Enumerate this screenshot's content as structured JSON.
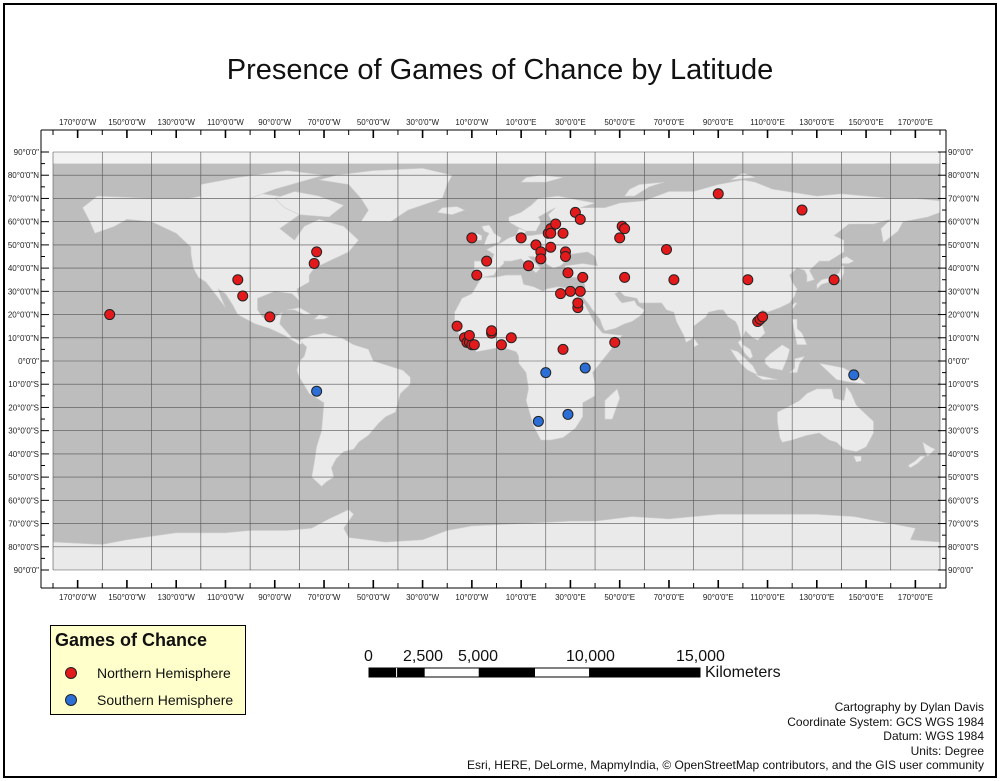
{
  "title": "Presence of Games of Chance by Latitude",
  "map": {
    "lon_labels": [
      "170°0'0\"W",
      "150°0'0\"W",
      "130°0'0\"W",
      "110°0'0\"W",
      "90°0'0\"W",
      "70°0'0\"W",
      "50°0'0\"W",
      "30°0'0\"W",
      "10°0'0\"W",
      "10°0'0\"E",
      "30°0'0\"E",
      "50°0'0\"E",
      "70°0'0\"E",
      "90°0'0\"E",
      "110°0'0\"E",
      "130°0'0\"E",
      "150°0'0\"E",
      "170°0'0\"E"
    ],
    "lat_labels_left": [
      "90°0'0\"",
      "80°0'0\"N",
      "70°0'0\"N",
      "60°0'0\"N",
      "50°0'0\"N",
      "40°0'0\"N",
      "30°0'0\"N",
      "20°0'0\"N",
      "10°0'0\"N",
      "0°0'0\"",
      "10°0'0\"S",
      "20°0'0\"S",
      "30°0'0\"S",
      "40°0'0\"S",
      "50°0'0\"S",
      "60°0'0\"S",
      "70°0'0\"S",
      "80°0'0\"S",
      "90°0'0\""
    ],
    "lat_labels_right": [
      "90°0'0\"",
      "80°0'0\"N",
      "70°0'0\"N",
      "60°0'0\"N",
      "50°0'0\"N",
      "40°0'0\"N",
      "30°0'0\"N",
      "20°0'0\"N",
      "10°0'0\"N",
      "0°0'0\"",
      "10°0'0\"S",
      "20°0'0\"S",
      "30°0'0\"S",
      "40°0'0\"S",
      "50°0'0\"S",
      "60°0'0\"S",
      "70°0'0\"S",
      "80°0'0\"S",
      "90°0'0\""
    ],
    "colors": {
      "ocean": "#bdbdbd",
      "land": "#eaeaea",
      "polar": "#f2f2f2",
      "grid": "#555555",
      "north": "#e31a1c",
      "south": "#2b6fd6"
    },
    "points_north": [
      [
        -157,
        20
      ],
      [
        -105,
        35
      ],
      [
        -103,
        28
      ],
      [
        -92,
        19
      ],
      [
        -73,
        47
      ],
      [
        -74,
        42
      ],
      [
        -16,
        15
      ],
      [
        -13,
        10
      ],
      [
        -12,
        8
      ],
      [
        -11,
        8
      ],
      [
        -10,
        7
      ],
      [
        -9,
        7
      ],
      [
        -11,
        11
      ],
      [
        -8,
        37
      ],
      [
        -4,
        43
      ],
      [
        -2,
        12
      ],
      [
        -2,
        13
      ],
      [
        2,
        7
      ],
      [
        6,
        10
      ],
      [
        10,
        53
      ],
      [
        -10,
        53
      ],
      [
        13,
        41
      ],
      [
        16,
        50
      ],
      [
        18,
        47
      ],
      [
        18,
        44
      ],
      [
        21,
        55
      ],
      [
        22,
        57
      ],
      [
        22,
        55
      ],
      [
        22,
        49
      ],
      [
        24,
        59
      ],
      [
        26,
        29
      ],
      [
        27,
        5
      ],
      [
        27,
        55
      ],
      [
        28,
        47
      ],
      [
        28,
        45
      ],
      [
        29,
        38
      ],
      [
        30,
        30
      ],
      [
        32,
        64
      ],
      [
        33,
        23
      ],
      [
        33,
        25
      ],
      [
        34,
        30
      ],
      [
        34,
        61
      ],
      [
        35,
        36
      ],
      [
        48,
        8
      ],
      [
        50,
        53
      ],
      [
        51,
        58
      ],
      [
        52,
        57
      ],
      [
        52,
        36
      ],
      [
        69,
        48
      ],
      [
        72,
        35
      ],
      [
        90,
        72
      ],
      [
        102,
        35
      ],
      [
        106,
        17
      ],
      [
        107,
        18
      ],
      [
        108,
        19
      ],
      [
        124,
        65
      ],
      [
        137,
        35
      ]
    ],
    "points_south": [
      [
        -73,
        -13
      ],
      [
        20,
        -5
      ],
      [
        36,
        -3
      ],
      [
        17,
        -26
      ],
      [
        29,
        -23
      ],
      [
        145,
        -6
      ]
    ]
  },
  "legend": {
    "title": "Games of Chance",
    "items": [
      {
        "label": "Northern Hemisphere",
        "color": "#e31a1c"
      },
      {
        "label": "Southern Hemisphere",
        "color": "#2b6fd6"
      }
    ]
  },
  "scale": {
    "labels": [
      "0",
      "2,500",
      "5,000",
      "10,000",
      "15,000"
    ],
    "unit": "Kilometers"
  },
  "credits": {
    "author": "Cartography by Dylan Davis",
    "coord": "Coordinate System: GCS WGS 1984",
    "datum": "Datum: WGS 1984",
    "units": "Units: Degree",
    "attribution": "Esri, HERE, DeLorme, MapmyIndia, © OpenStreetMap contributors, and the GIS user community"
  }
}
